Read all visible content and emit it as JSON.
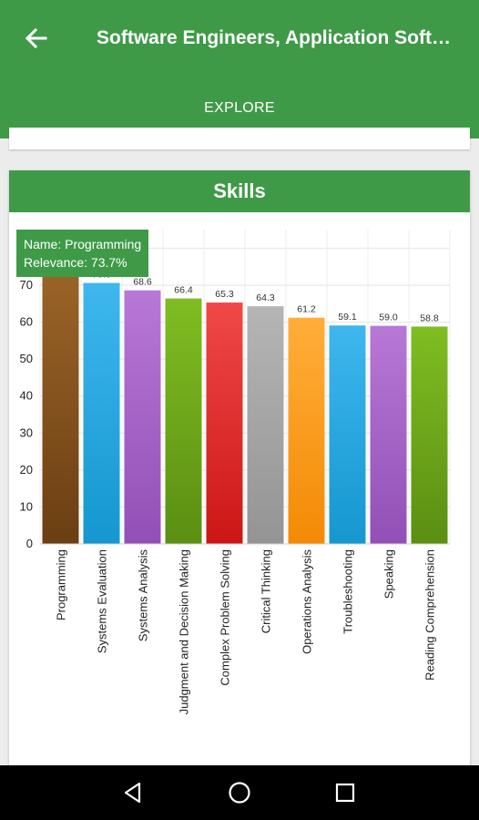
{
  "header": {
    "title": "Software Engineers, Application Softw…"
  },
  "tabs": [
    {
      "label": "EXPLORE"
    }
  ],
  "card": {
    "title": "Skills"
  },
  "tooltip": {
    "name_line": "Name: Programming",
    "relevance_line": "Relevance: 73.7%"
  },
  "icons": {
    "back": "arrow-left-icon",
    "nav": [
      "back-triangle-icon",
      "home-circle-icon",
      "recents-square-icon"
    ]
  },
  "colors": {
    "primary": "#3f9a48",
    "navbar": "#000000"
  },
  "chart_data": {
    "type": "bar",
    "title": "",
    "xlabel": "",
    "ylabel": "",
    "ylim": [
      0,
      80
    ],
    "yticks": [
      0,
      10,
      20,
      30,
      40,
      50,
      60,
      70
    ],
    "grid": true,
    "categories": [
      "Programming",
      "Systems Evaluation",
      "Systems Analysis",
      "Judgment and Decision Making",
      "Complex Problem Solving",
      "Critical Thinking",
      "Operations Analysis",
      "Troubleshooting",
      "Speaking",
      "Reading Comprehension"
    ],
    "values": [
      73.7,
      70.6,
      68.6,
      66.4,
      65.3,
      64.3,
      61.2,
      59.1,
      59.0,
      58.8
    ],
    "value_labels": [
      "",
      "70.6",
      "68.6",
      "66.4",
      "65.3",
      "64.3",
      "61.2",
      "59.1",
      "59.0",
      "58.8"
    ],
    "colors": [
      [
        "#9a6428",
        "#6b3f12"
      ],
      [
        "#3fb6ee",
        "#1597cf"
      ],
      [
        "#b778d6",
        "#9250b6"
      ],
      [
        "#7fbd22",
        "#5b8e12"
      ],
      [
        "#f04848",
        "#cc1616"
      ],
      [
        "#b5b5b5",
        "#949494"
      ],
      [
        "#ffae3a",
        "#f48a05"
      ],
      [
        "#3fb6ee",
        "#1597cf"
      ],
      [
        "#b778d6",
        "#9250b6"
      ],
      [
        "#7fbd22",
        "#5b8e12"
      ]
    ]
  }
}
